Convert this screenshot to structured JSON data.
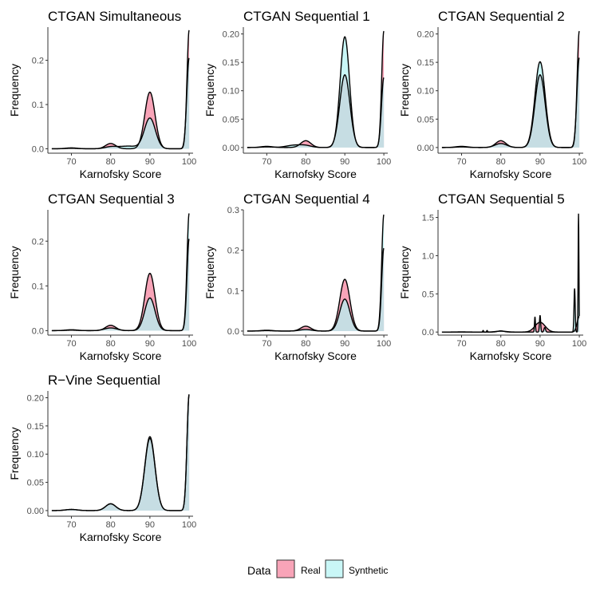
{
  "chart_data": [
    {
      "type": "area",
      "title": "CTGAN Simultaneous",
      "xlabel": "Karnofsky Score",
      "ylabel": "Frequency",
      "xlim": [
        64,
        101
      ],
      "ylim": [
        -0.01,
        0.275
      ],
      "xticks": [
        70,
        80,
        90,
        100
      ],
      "yticks": [
        0.0,
        0.1,
        0.2
      ],
      "ytick_labels": [
        "0.0",
        "0.1",
        "0.2"
      ],
      "series": [
        {
          "name": "Real",
          "peaks": [
            [
              70,
              0.002,
              1.5
            ],
            [
              80,
              0.012,
              1.3
            ],
            [
              90,
              0.128,
              1.3
            ],
            [
              100,
              0.268,
              0.55
            ]
          ]
        },
        {
          "name": "Synthetic",
          "peaks": [
            [
              70,
              0.001,
              1.5
            ],
            [
              80,
              0.004,
              1.5
            ],
            [
              84.5,
              0.006,
              2.5
            ],
            [
              90,
              0.069,
              1.4
            ],
            [
              100,
              0.205,
              0.6
            ]
          ]
        }
      ]
    },
    {
      "type": "area",
      "title": "CTGAN Sequential 1",
      "xlabel": "Karnofsky Score",
      "ylabel": "Frequency",
      "xlim": [
        64,
        101
      ],
      "ylim": [
        -0.01,
        0.212
      ],
      "xticks": [
        70,
        80,
        90,
        100
      ],
      "yticks": [
        0.0,
        0.05,
        0.1,
        0.15,
        0.2
      ],
      "ytick_labels": [
        "0.00",
        "0.05",
        "0.10",
        "0.15",
        "0.20"
      ],
      "series": [
        {
          "name": "Real",
          "peaks": [
            [
              70,
              0.002,
              1.5
            ],
            [
              80,
              0.012,
              1.3
            ],
            [
              90,
              0.128,
              1.3
            ],
            [
              100,
              0.205,
              0.55
            ]
          ]
        },
        {
          "name": "Synthetic",
          "peaks": [
            [
              70,
              0.001,
              1.5
            ],
            [
              77,
              0.004,
              2.0
            ],
            [
              80,
              0.003,
              1.5
            ],
            [
              90,
              0.195,
              1.2
            ],
            [
              100,
              0.123,
              0.6
            ]
          ]
        }
      ]
    },
    {
      "type": "area",
      "title": "CTGAN Sequential 2",
      "xlabel": "Karnofsky Score",
      "ylabel": "Frequency",
      "xlim": [
        64,
        101
      ],
      "ylim": [
        -0.01,
        0.212
      ],
      "xticks": [
        70,
        80,
        90,
        100
      ],
      "yticks": [
        0.0,
        0.05,
        0.1,
        0.15,
        0.2
      ],
      "ytick_labels": [
        "0.00",
        "0.05",
        "0.10",
        "0.15",
        "0.20"
      ],
      "series": [
        {
          "name": "Real",
          "peaks": [
            [
              70,
              0.002,
              1.5
            ],
            [
              80,
              0.012,
              1.3
            ],
            [
              90,
              0.128,
              1.3
            ],
            [
              100,
              0.205,
              0.55
            ]
          ]
        },
        {
          "name": "Synthetic",
          "peaks": [
            [
              70,
              0.001,
              1.5
            ],
            [
              80,
              0.007,
              1.5
            ],
            [
              90,
              0.151,
              1.3
            ],
            [
              100,
              0.158,
              0.6
            ]
          ]
        }
      ]
    },
    {
      "type": "area",
      "title": "CTGAN Sequential 3",
      "xlabel": "Karnofsky Score",
      "ylabel": "Frequency",
      "xlim": [
        64,
        101
      ],
      "ylim": [
        -0.01,
        0.27
      ],
      "xticks": [
        70,
        80,
        90,
        100
      ],
      "yticks": [
        0.0,
        0.1,
        0.2
      ],
      "ytick_labels": [
        "0.0",
        "0.1",
        "0.2"
      ],
      "series": [
        {
          "name": "Real",
          "peaks": [
            [
              70,
              0.002,
              1.5
            ],
            [
              80,
              0.012,
              1.3
            ],
            [
              90,
              0.128,
              1.3
            ],
            [
              100,
              0.205,
              0.55
            ]
          ]
        },
        {
          "name": "Synthetic",
          "peaks": [
            [
              70,
              0.001,
              1.5
            ],
            [
              80,
              0.006,
              1.6
            ],
            [
              90,
              0.073,
              1.3
            ],
            [
              100,
              0.262,
              0.55
            ]
          ]
        }
      ]
    },
    {
      "type": "area",
      "title": "CTGAN Sequential 4",
      "xlabel": "Karnofsky Score",
      "ylabel": "Frequency",
      "xlim": [
        64,
        101
      ],
      "ylim": [
        -0.01,
        0.3
      ],
      "xticks": [
        70,
        80,
        90,
        100
      ],
      "yticks": [
        0.0,
        0.1,
        0.2,
        0.3
      ],
      "ytick_labels": [
        "0.0",
        "0.1",
        "0.2",
        "0.3"
      ],
      "series": [
        {
          "name": "Real",
          "peaks": [
            [
              70,
              0.002,
              1.5
            ],
            [
              80,
              0.012,
              1.3
            ],
            [
              90,
              0.128,
              1.3
            ],
            [
              100,
              0.205,
              0.55
            ]
          ]
        },
        {
          "name": "Synthetic",
          "peaks": [
            [
              70,
              0.001,
              1.5
            ],
            [
              80,
              0.004,
              1.5
            ],
            [
              90,
              0.079,
              1.3
            ],
            [
              100,
              0.288,
              0.55
            ]
          ]
        }
      ]
    },
    {
      "type": "area",
      "title": "CTGAN Sequential 5",
      "xlabel": "Karnofsky Score",
      "ylabel": "Frequency",
      "xlim": [
        64,
        101
      ],
      "ylim": [
        -0.04,
        1.6
      ],
      "xticks": [
        70,
        80,
        90,
        100
      ],
      "yticks": [
        0.0,
        0.5,
        1.0,
        1.5
      ],
      "ytick_labels": [
        "0.0",
        "0.5",
        "1.0",
        "1.5"
      ],
      "series": [
        {
          "name": "Real",
          "peaks": [
            [
              70,
              0.002,
              1.5
            ],
            [
              80,
              0.012,
              1.3
            ],
            [
              90,
              0.128,
              1.3
            ],
            [
              100,
              0.205,
              0.55
            ]
          ]
        },
        {
          "name": "Synthetic",
          "peaks": [
            [
              75.5,
              0.02,
              0.12
            ],
            [
              76.5,
              0.02,
              0.12
            ],
            [
              80,
              0.015,
              0.8
            ],
            [
              88.7,
              0.2,
              0.12
            ],
            [
              90,
              0.22,
              0.15
            ],
            [
              91.2,
              0.06,
              0.2
            ],
            [
              98.8,
              0.57,
              0.15
            ],
            [
              99.8,
              1.55,
              0.1
            ]
          ]
        }
      ]
    },
    {
      "type": "area",
      "title": "R−Vine Sequential",
      "xlabel": "Karnofsky Score",
      "ylabel": "Frequency",
      "xlim": [
        64,
        101
      ],
      "ylim": [
        -0.01,
        0.212
      ],
      "xticks": [
        70,
        80,
        90,
        100
      ],
      "yticks": [
        0.0,
        0.05,
        0.1,
        0.15,
        0.2
      ],
      "ytick_labels": [
        "0.00",
        "0.05",
        "0.10",
        "0.15",
        "0.20"
      ],
      "series": [
        {
          "name": "Real",
          "peaks": [
            [
              70,
              0.002,
              1.5
            ],
            [
              80,
              0.012,
              1.3
            ],
            [
              90,
              0.128,
              1.3
            ],
            [
              100,
              0.205,
              0.55
            ]
          ]
        },
        {
          "name": "Synthetic",
          "peaks": [
            [
              70,
              0.002,
              1.5
            ],
            [
              80,
              0.012,
              1.3
            ],
            [
              90,
              0.131,
              1.3
            ],
            [
              100,
              0.206,
              0.55
            ]
          ]
        }
      ]
    }
  ],
  "legend": {
    "title": "Data",
    "items": [
      {
        "label": "Real",
        "color": "#f8a4b8"
      },
      {
        "label": "Synthetic",
        "color": "#c9f7f7"
      }
    ]
  },
  "colors": {
    "real_fill": "#f8a4b8",
    "synthetic_fill": "#c9f7f7",
    "overlap_fill": "#c6dde3",
    "curve": "#000000",
    "axis": "#333333"
  }
}
